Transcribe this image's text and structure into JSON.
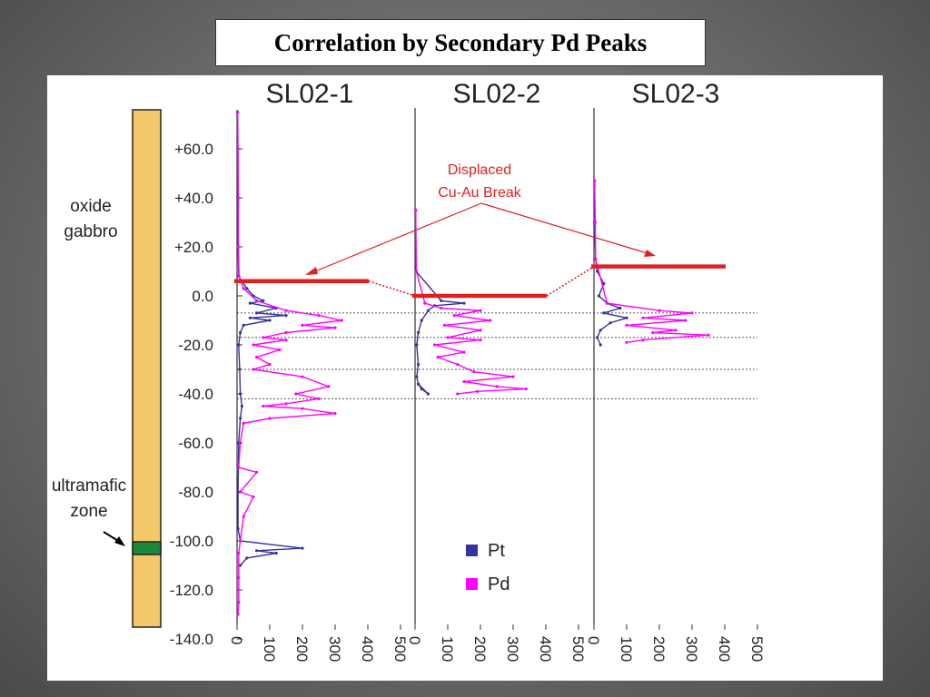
{
  "title": "Correlation by Secondary Pd Peaks",
  "stratigraphy": {
    "upper_label": [
      "oxide",
      "gabbro"
    ],
    "lower_label": [
      "ultramafic",
      "zone"
    ],
    "unit_color": "#f5c86a",
    "zone_color": "#1a8a3a"
  },
  "annotation": {
    "lines": [
      "Displaced",
      "Cu-Au Break"
    ],
    "color": "#e02020"
  },
  "legend": [
    {
      "label": "Pt",
      "color": "#333399"
    },
    {
      "label": "Pd",
      "color": "#ff00ff"
    }
  ],
  "chart_data": {
    "type": "line",
    "ylim": [
      -140,
      75
    ],
    "y_ticks": [
      "+60.0",
      "+40.0",
      "+20.0",
      "0.0",
      "-20.0",
      "-40.0",
      "-60.0",
      "-80.0",
      "-100.0",
      "-120.0",
      "-140.0"
    ],
    "y_tick_values": [
      60,
      40,
      20,
      0,
      -20,
      -40,
      -60,
      -80,
      -100,
      -120,
      -140
    ],
    "x_ticks": [
      "0",
      "100",
      "200",
      "300",
      "400",
      "500"
    ],
    "x_tick_values": [
      0,
      100,
      200,
      300,
      400,
      500
    ],
    "correlation_lines": [
      -7,
      -17,
      -30,
      -42
    ],
    "panels": [
      {
        "name": "SL02-1",
        "break_depth": 6,
        "series": [
          {
            "name": "Pt",
            "points": [
              [
                2,
                75
              ],
              [
                2,
                60
              ],
              [
                2,
                40
              ],
              [
                3,
                20
              ],
              [
                5,
                8
              ],
              [
                30,
                3
              ],
              [
                50,
                0
              ],
              [
                80,
                -2
              ],
              [
                40,
                -3
              ],
              [
                120,
                -5
              ],
              [
                60,
                -7
              ],
              [
                150,
                -8
              ],
              [
                40,
                -9
              ],
              [
                100,
                -10
              ],
              [
                20,
                -12
              ],
              [
                10,
                -15
              ],
              [
                5,
                -20
              ],
              [
                8,
                -30
              ],
              [
                10,
                -40
              ],
              [
                15,
                -45
              ],
              [
                10,
                -50
              ],
              [
                5,
                -60
              ],
              [
                3,
                -80
              ],
              [
                3,
                -95
              ],
              [
                10,
                -100
              ],
              [
                200,
                -103
              ],
              [
                60,
                -104
              ],
              [
                120,
                -105
              ],
              [
                30,
                -107
              ],
              [
                10,
                -110
              ]
            ]
          },
          {
            "name": "Pd",
            "points": [
              [
                2,
                75
              ],
              [
                3,
                60
              ],
              [
                4,
                40
              ],
              [
                4,
                20
              ],
              [
                6,
                8
              ],
              [
                20,
                3
              ],
              [
                60,
                -2
              ],
              [
                150,
                -6
              ],
              [
                250,
                -8
              ],
              [
                320,
                -10
              ],
              [
                200,
                -12
              ],
              [
                300,
                -13
              ],
              [
                150,
                -15
              ],
              [
                80,
                -17
              ],
              [
                150,
                -18
              ],
              [
                50,
                -20
              ],
              [
                130,
                -22
              ],
              [
                60,
                -25
              ],
              [
                100,
                -28
              ],
              [
                50,
                -30
              ],
              [
                200,
                -33
              ],
              [
                280,
                -37
              ],
              [
                180,
                -40
              ],
              [
                250,
                -42
              ],
              [
                150,
                -44
              ],
              [
                80,
                -45
              ],
              [
                200,
                -46
              ],
              [
                300,
                -48
              ],
              [
                100,
                -50
              ],
              [
                20,
                -52
              ],
              [
                10,
                -60
              ],
              [
                5,
                -70
              ],
              [
                60,
                -72
              ],
              [
                10,
                -80
              ],
              [
                50,
                -82
              ],
              [
                20,
                -90
              ],
              [
                10,
                -100
              ],
              [
                5,
                -105
              ],
              [
                5,
                -115
              ],
              [
                5,
                -125
              ],
              [
                3,
                -130
              ]
            ]
          }
        ]
      },
      {
        "name": "SL02-2",
        "break_depth": 0,
        "series": [
          {
            "name": "Pt",
            "points": [
              [
                2,
                35
              ],
              [
                3,
                10
              ],
              [
                80,
                -2
              ],
              [
                150,
                -3
              ],
              [
                60,
                -4
              ],
              [
                40,
                -6
              ],
              [
                20,
                -10
              ],
              [
                10,
                -15
              ],
              [
                5,
                -20
              ],
              [
                10,
                -28
              ],
              [
                5,
                -33
              ],
              [
                10,
                -36
              ],
              [
                20,
                -38
              ],
              [
                40,
                -40
              ],
              [
                10,
                -36
              ]
            ]
          },
          {
            "name": "Pd",
            "points": [
              [
                2,
                35
              ],
              [
                4,
                10
              ],
              [
                30,
                -3
              ],
              [
                80,
                -5
              ],
              [
                200,
                -6
              ],
              [
                120,
                -8
              ],
              [
                230,
                -10
              ],
              [
                90,
                -12
              ],
              [
                200,
                -14
              ],
              [
                100,
                -17
              ],
              [
                200,
                -18
              ],
              [
                60,
                -20
              ],
              [
                150,
                -23
              ],
              [
                70,
                -25
              ],
              [
                130,
                -28
              ],
              [
                180,
                -31
              ],
              [
                300,
                -33
              ],
              [
                150,
                -35
              ],
              [
                250,
                -37
              ],
              [
                340,
                -38
              ],
              [
                190,
                -39
              ],
              [
                130,
                -40
              ]
            ]
          }
        ]
      },
      {
        "name": "SL02-3",
        "break_depth": 12,
        "series": [
          {
            "name": "Pt",
            "points": [
              [
                2,
                47
              ],
              [
                2,
                30
              ],
              [
                5,
                15
              ],
              [
                10,
                10
              ],
              [
                30,
                5
              ],
              [
                15,
                0
              ],
              [
                40,
                -3
              ],
              [
                80,
                -5
              ],
              [
                30,
                -7
              ],
              [
                100,
                -9
              ],
              [
                50,
                -11
              ],
              [
                20,
                -14
              ],
              [
                10,
                -17
              ],
              [
                20,
                -20
              ]
            ]
          },
          {
            "name": "Pd",
            "points": [
              [
                2,
                47
              ],
              [
                4,
                30
              ],
              [
                5,
                15
              ],
              [
                40,
                -3
              ],
              [
                200,
                -6
              ],
              [
                300,
                -7
              ],
              [
                150,
                -9
              ],
              [
                280,
                -10
              ],
              [
                100,
                -12
              ],
              [
                250,
                -14
              ],
              [
                180,
                -15
              ],
              [
                350,
                -16
              ],
              [
                150,
                -18
              ],
              [
                100,
                -19
              ]
            ]
          }
        ]
      }
    ]
  }
}
